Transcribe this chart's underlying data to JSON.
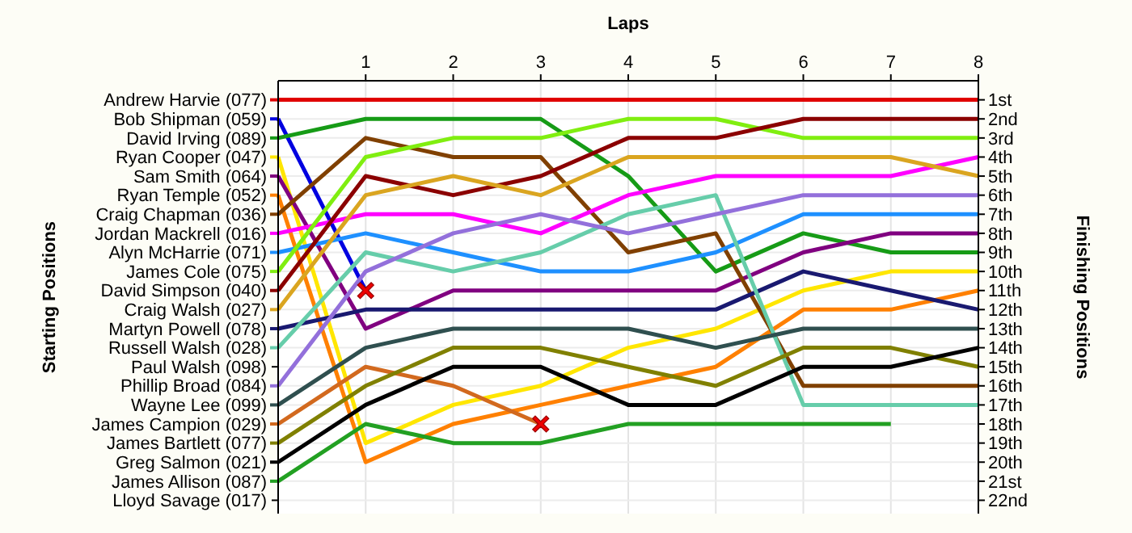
{
  "chart_data": {
    "type": "line",
    "xlabel": "Laps",
    "ylabel": "Finishing Positions",
    "legend_title": "Starting Positions",
    "legend": "left",
    "x": [
      0,
      1,
      2,
      3,
      4,
      5,
      6,
      7,
      8
    ],
    "xlim": [
      0,
      8
    ],
    "xticks": [
      1,
      2,
      3,
      4,
      5,
      6,
      7,
      8
    ],
    "ylim": [
      22.7,
      0
    ],
    "grid": true,
    "marker": "none",
    "line_style": "solid",
    "yticks": [
      {
        "value": 1,
        "label": "1st"
      },
      {
        "value": 2,
        "label": "2nd"
      },
      {
        "value": 3,
        "label": "3rd"
      },
      {
        "value": 4,
        "label": "4th"
      },
      {
        "value": 5,
        "label": "5th"
      },
      {
        "value": 6,
        "label": "6th"
      },
      {
        "value": 7,
        "label": "7th"
      },
      {
        "value": 8,
        "label": "8th"
      },
      {
        "value": 9,
        "label": "9th"
      },
      {
        "value": 10,
        "label": "10th"
      },
      {
        "value": 11,
        "label": "11th"
      },
      {
        "value": 12,
        "label": "12th"
      },
      {
        "value": 13,
        "label": "13th"
      },
      {
        "value": 14,
        "label": "14th"
      },
      {
        "value": 15,
        "label": "15th"
      },
      {
        "value": 16,
        "label": "16th"
      },
      {
        "value": 17,
        "label": "17th"
      },
      {
        "value": 18,
        "label": "18th"
      },
      {
        "value": 19,
        "label": "19th"
      },
      {
        "value": 20,
        "label": "20th"
      },
      {
        "value": 21,
        "label": "21st"
      },
      {
        "value": 22,
        "label": "22nd"
      }
    ],
    "annotations": [
      "Paul Walsh (098)",
      "Lloyd Savage (017)"
    ],
    "series": [
      {
        "name": "Andrew Harvie (077)",
        "color": "#e00000",
        "values": [
          1,
          1,
          1,
          1,
          1,
          1,
          1,
          1,
          1
        ]
      },
      {
        "name": "Bob Shipman (059)",
        "color": "#0000e0",
        "values": [
          2,
          11,
          null,
          null,
          null,
          null,
          null,
          null,
          null
        ]
      },
      {
        "name": "David Irving (089)",
        "color": "#169b16",
        "values": [
          3,
          2,
          2,
          2,
          5,
          10,
          8,
          9,
          9
        ]
      },
      {
        "name": "Ryan Cooper (047)",
        "color": "#ffe600",
        "values": [
          4,
          19,
          17,
          16,
          14,
          13,
          11,
          10,
          10
        ]
      },
      {
        "name": "Sam Smith (064)",
        "color": "#800080",
        "values": [
          5,
          13,
          11,
          11,
          11,
          11,
          9,
          8,
          8
        ]
      },
      {
        "name": "Ryan Temple (052)",
        "color": "#ff8000",
        "values": [
          6,
          20,
          18,
          17,
          16,
          15,
          12,
          12,
          11
        ]
      },
      {
        "name": "Craig Chapman (036)",
        "color": "#804000",
        "values": [
          7,
          3,
          4,
          4,
          9,
          8,
          16,
          16,
          16
        ]
      },
      {
        "name": "Jordan Mackrell (016)",
        "color": "#ff00ff",
        "values": [
          8,
          7,
          7,
          8,
          6,
          5,
          5,
          5,
          4
        ]
      },
      {
        "name": "Alyn McHarrie (071)",
        "color": "#1e90ff",
        "values": [
          9,
          8,
          9,
          10,
          10,
          9,
          7,
          7,
          7
        ]
      },
      {
        "name": "James Cole (075)",
        "color": "#80ee10",
        "values": [
          10,
          4,
          3,
          3,
          2,
          2,
          3,
          3,
          3
        ]
      },
      {
        "name": "David Simpson (040)",
        "color": "#8b0000",
        "values": [
          11,
          5,
          6,
          5,
          3,
          3,
          2,
          2,
          2
        ]
      },
      {
        "name": "Craig Walsh (027)",
        "color": "#daa520",
        "values": [
          12,
          6,
          5,
          6,
          4,
          4,
          4,
          4,
          5
        ]
      },
      {
        "name": "Martyn Powell (078)",
        "color": "#191970",
        "values": [
          13,
          12,
          12,
          12,
          12,
          12,
          10,
          11,
          12
        ]
      },
      {
        "name": "Russell Walsh (028)",
        "color": "#66cdaa",
        "values": [
          14,
          9,
          10,
          9,
          7,
          6,
          17,
          17,
          17
        ]
      },
      {
        "name": "Phillip Broad (084)",
        "color": "#9370db",
        "values": [
          16,
          10,
          8,
          7,
          8,
          7,
          6,
          6,
          6
        ]
      },
      {
        "name": "Wayne Lee (099)",
        "color": "#2f4f4f",
        "values": [
          17,
          14,
          13,
          13,
          13,
          14,
          13,
          13,
          13
        ]
      },
      {
        "name": "James Campion (029)",
        "color": "#d2691e",
        "values": [
          18,
          15,
          16,
          18,
          null,
          null,
          null,
          null,
          null
        ]
      },
      {
        "name": "James Bartlett (077)",
        "color": "#808000",
        "values": [
          19,
          16,
          14,
          14,
          15,
          16,
          14,
          14,
          15
        ]
      },
      {
        "name": "Greg Salmon (021)",
        "color": "#000000",
        "values": [
          20,
          17,
          15,
          15,
          17,
          17,
          15,
          15,
          14
        ]
      },
      {
        "name": "James Allison (087)",
        "color": "#22a022",
        "values": [
          21,
          18,
          19,
          19,
          18,
          18,
          18,
          18,
          null
        ]
      },
      {
        "type": "scatter",
        "marker": "cross",
        "color": "#ee0000",
        "x": [
          1,
          3
        ],
        "values": [
          11,
          18
        ]
      }
    ]
  }
}
